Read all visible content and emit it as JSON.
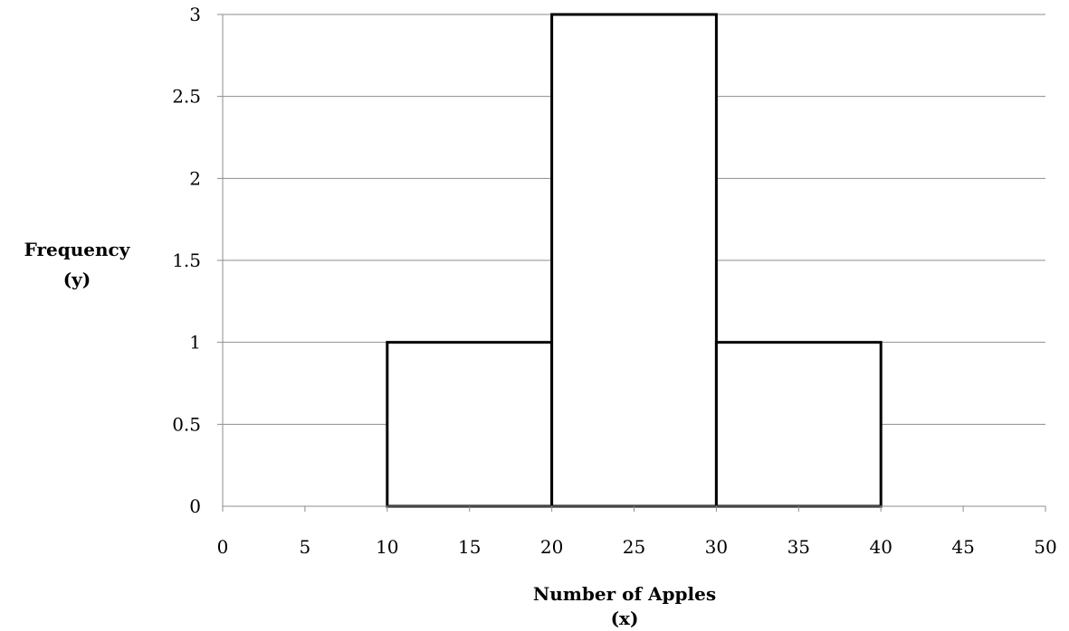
{
  "chart_data": {
    "type": "bar",
    "subtype": "histogram",
    "bins": [
      {
        "x0": 10,
        "x1": 20,
        "value": 1
      },
      {
        "x0": 20,
        "x1": 30,
        "value": 3
      },
      {
        "x0": 30,
        "x1": 40,
        "value": 1
      }
    ],
    "xlabel": [
      "Number of Apples",
      "(x)"
    ],
    "ylabel": [
      "Frequency",
      "(y)"
    ],
    "xlim": [
      0,
      50
    ],
    "ylim": [
      0,
      3
    ],
    "xticks": [
      "0",
      "5",
      "10",
      "15",
      "20",
      "25",
      "30",
      "35",
      "40",
      "45",
      "50"
    ],
    "yticks": [
      "0",
      "0.5",
      "1",
      "1.5",
      "2",
      "2.5",
      "3"
    ],
    "grid": "horizontal",
    "legend": "none",
    "colors": {
      "bar_fill": "#ffffff",
      "bar_stroke": "#000000",
      "grid": "#8c8c8c",
      "axis": "#8c8c8c"
    }
  }
}
